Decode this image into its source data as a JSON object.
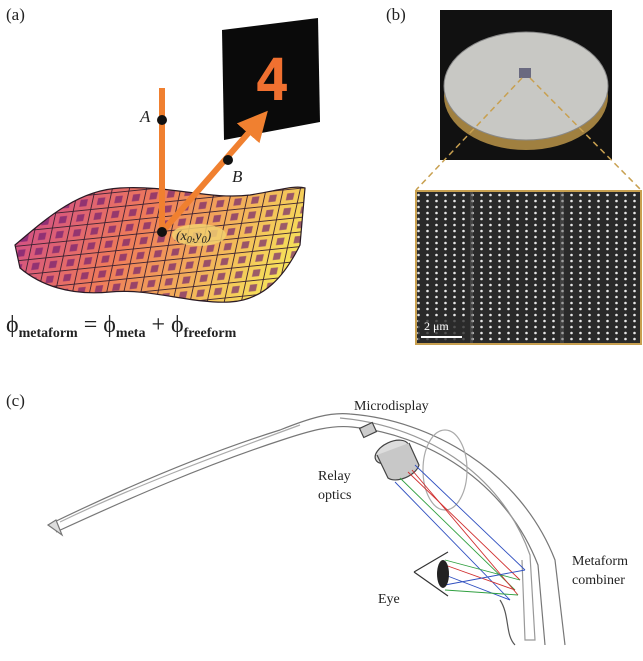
{
  "panel_a": {
    "label": "(a)",
    "point_a": "A",
    "point_b": "B",
    "origin": {
      "open": "(x",
      "sub1": "0",
      "mid": ",y",
      "sub2": "0",
      "close": ")"
    },
    "display_digit": "4",
    "formula": {
      "lhs": {
        "symbol": "ϕ",
        "subscript": "metaform"
      },
      "equals": "=",
      "term1": {
        "symbol": "ϕ",
        "subscript": "meta"
      },
      "plus": "+",
      "term2": {
        "symbol": "ϕ",
        "subscript": "freeform"
      }
    }
  },
  "panel_b": {
    "label": "(b)",
    "scale_bar": "2 μm"
  },
  "panel_c": {
    "label": "(c)",
    "microdisplay": "Microdisplay",
    "relay_optics": [
      "Relay",
      "optics"
    ],
    "eye": "Eye",
    "combiner": [
      "Metaform",
      "combiner"
    ]
  }
}
